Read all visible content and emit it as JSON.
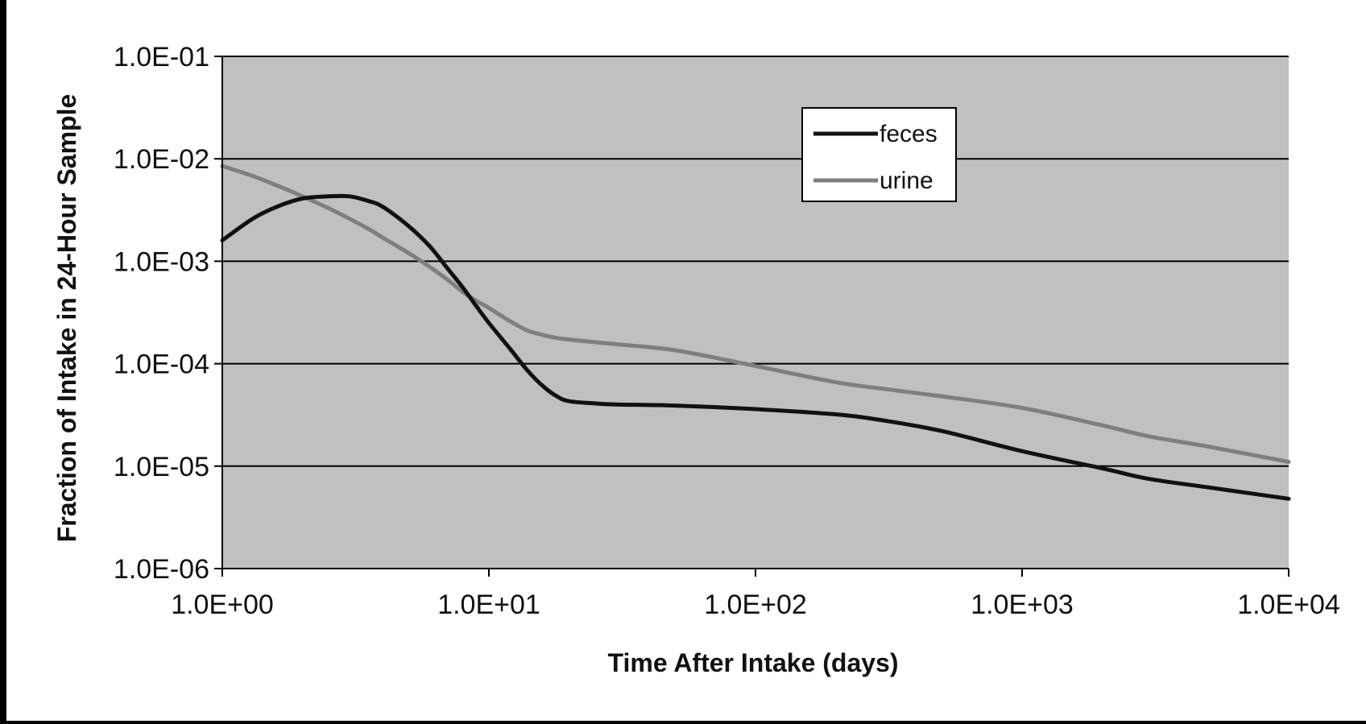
{
  "chart_data": {
    "type": "line",
    "xlabel": "Time After Intake (days)",
    "ylabel": "Fraction of Intake in 24-Hour Sample",
    "x_scale": "log",
    "y_scale": "log",
    "xlim": [
      1,
      10000
    ],
    "ylim": [
      1e-06,
      0.1
    ],
    "x_tick_labels": [
      "1.0E+00",
      "1.0E+01",
      "1.0E+02",
      "1.0E+03",
      "1.0E+04"
    ],
    "y_tick_labels": [
      "1.0E-01",
      "1.0E-02",
      "1.0E-03",
      "1.0E-04",
      "1.0E-05",
      "1.0E-06"
    ],
    "grid": "horizontal",
    "plot_background": "#c0c0c0",
    "legend_position": "top-center",
    "series": [
      {
        "name": "feces",
        "color": "#111111",
        "x": [
          1,
          1.3,
          1.6,
          2,
          2.5,
          3,
          3.5,
          4,
          5,
          6,
          7,
          8,
          9,
          10,
          12,
          14,
          16,
          18,
          20,
          25,
          30,
          50,
          100,
          200,
          300,
          500,
          1000,
          2000,
          3000,
          5000,
          10000
        ],
        "y": [
          0.0016,
          0.0026,
          0.0034,
          0.0041,
          0.0043,
          0.0043,
          0.0039,
          0.0034,
          0.0022,
          0.0014,
          0.00085,
          0.00055,
          0.00036,
          0.00025,
          0.00014,
          8.5e-05,
          6e-05,
          4.8e-05,
          4.3e-05,
          4.1e-05,
          4e-05,
          3.9e-05,
          3.6e-05,
          3.2e-05,
          2.8e-05,
          2.2e-05,
          1.4e-05,
          9.5e-06,
          7.5e-06,
          6.2e-06,
          4.8e-06
        ]
      },
      {
        "name": "urine",
        "color": "#7f7f7f",
        "x": [
          1,
          1.3,
          1.6,
          2,
          2.5,
          3,
          3.5,
          4,
          5,
          6,
          7,
          8,
          9,
          10,
          12,
          14,
          16,
          18,
          20,
          25,
          30,
          50,
          100,
          200,
          300,
          500,
          1000,
          2000,
          3000,
          5000,
          10000
        ],
        "y": [
          0.0085,
          0.0068,
          0.0055,
          0.0043,
          0.0033,
          0.0026,
          0.0021,
          0.0017,
          0.0012,
          0.00088,
          0.00066,
          0.0005,
          0.00041,
          0.00035,
          0.00026,
          0.00021,
          0.00019,
          0.000178,
          0.000172,
          0.000162,
          0.000155,
          0.000135,
          9.5e-05,
          6.6e-05,
          5.7e-05,
          4.8e-05,
          3.7e-05,
          2.5e-05,
          1.95e-05,
          1.55e-05,
          1.1e-05
        ]
      }
    ]
  }
}
